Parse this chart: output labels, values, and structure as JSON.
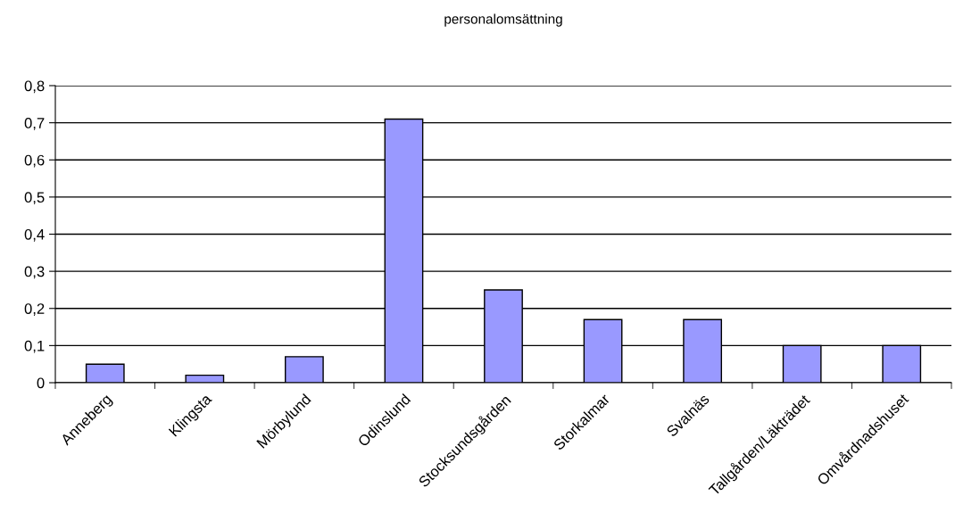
{
  "chart_data": {
    "type": "bar",
    "title": "personalomsättning",
    "categories": [
      "Anneberg",
      "Klingsta",
      "Mörbylund",
      "Odinslund",
      "Stocksundsgården",
      "Storkalmar",
      "Svalnäs",
      "Tallgården/Läkträdet",
      "Omvårdnadshuset"
    ],
    "values": [
      0.05,
      0.02,
      0.07,
      0.71,
      0.25,
      0.17,
      0.17,
      0.1,
      0.1
    ],
    "color": "#9999ff",
    "ylim": [
      0,
      0.8
    ],
    "yticks": [
      {
        "value": 0,
        "label": "0"
      },
      {
        "value": 0.1,
        "label": "0,1"
      },
      {
        "value": 0.2,
        "label": "0,2"
      },
      {
        "value": 0.3,
        "label": "0,3"
      },
      {
        "value": 0.4,
        "label": "0,4"
      },
      {
        "value": 0.5,
        "label": "0,5"
      },
      {
        "value": 0.6,
        "label": "0,6"
      },
      {
        "value": 0.7,
        "label": "0,7"
      },
      {
        "value": 0.8,
        "label": "0,8"
      }
    ],
    "grid": "y"
  }
}
